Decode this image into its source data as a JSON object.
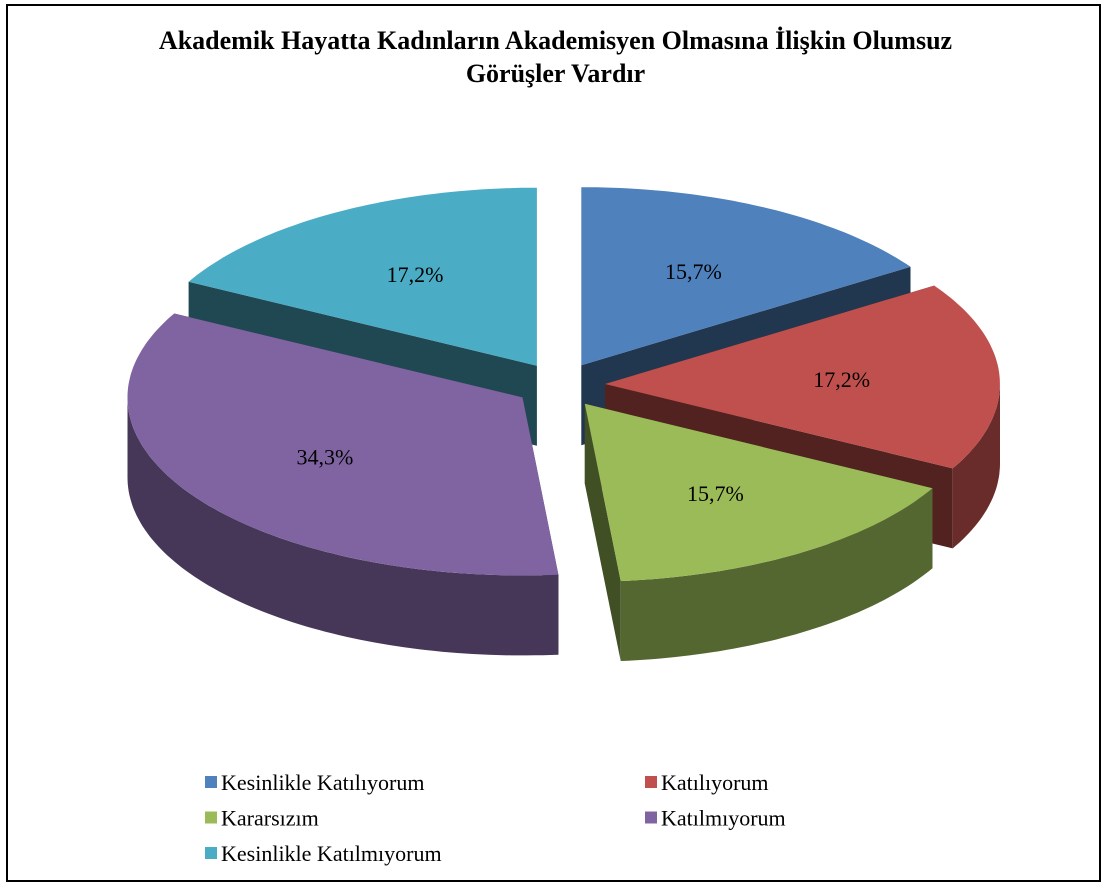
{
  "chart_data": {
    "type": "pie",
    "title": "Akademik Hayatta Kadınların Akademisyen Olmasına İlişkin Olumsuz Görüşler Vardır",
    "categories": [
      "Kesinlikle Katılıyorum",
      "Katılıyorum",
      "Kararsızım",
      "Katılmıyorum",
      "Kesinlikle Katılmıyorum"
    ],
    "values": [
      15.7,
      17.2,
      15.7,
      34.3,
      17.2
    ],
    "value_labels": [
      "15,7%",
      "17,2%",
      "15,7%",
      "34,3%",
      "17,2%"
    ],
    "colors": [
      "#4f81bd",
      "#c0504d",
      "#9bbb59",
      "#8064a2",
      "#4bacc6"
    ]
  }
}
